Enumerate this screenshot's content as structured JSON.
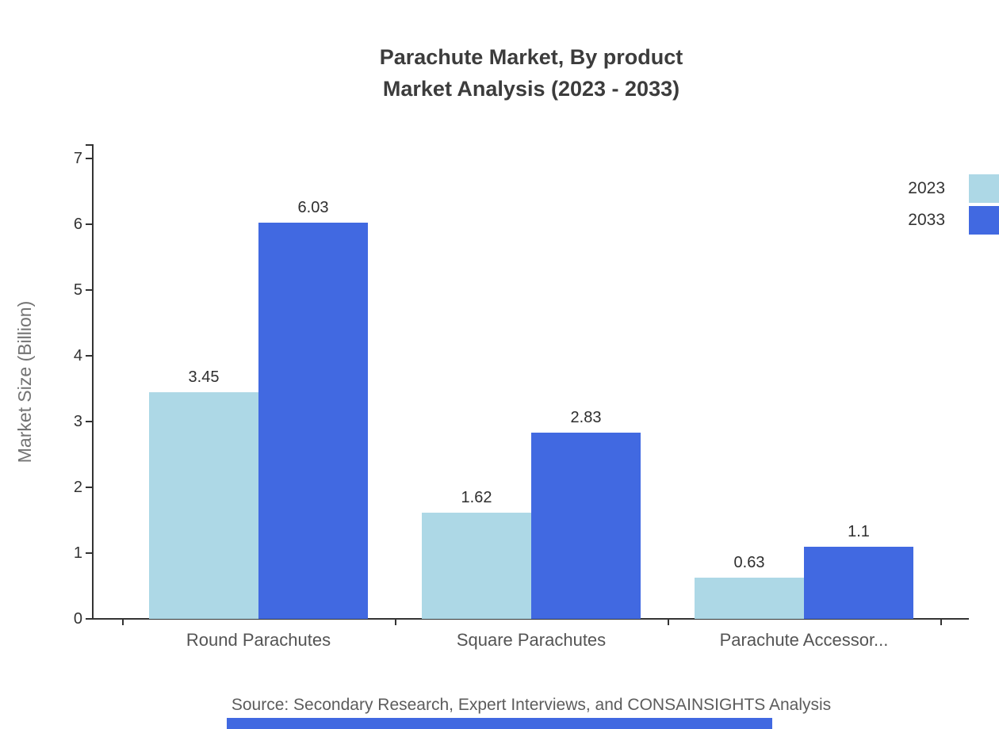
{
  "chart": {
    "title_line1": "Parachute Market, By product",
    "title_line2": "Market Analysis (2023 - 2033)",
    "ylabel": "Market Size (Billion)",
    "source": "Source: Secondary Research, Expert Interviews, and CONSAINSIGHTS Analysis"
  },
  "colors": {
    "series_2023": "#ADD8E6",
    "series_2033": "#4169E1",
    "axis": "#333333",
    "footer_bar": "#4169E1"
  },
  "chart_data": {
    "type": "bar",
    "title": "Parachute Market, By product Market Analysis (2023 - 2033)",
    "categories": [
      "Round Parachutes",
      "Square Parachutes",
      "Parachute Accessor..."
    ],
    "series": [
      {
        "name": "2023",
        "color": "#ADD8E6",
        "values": [
          3.45,
          1.62,
          0.63
        ]
      },
      {
        "name": "2033",
        "color": "#4169E1",
        "values": [
          6.03,
          2.83,
          1.1
        ]
      }
    ],
    "value_labels": [
      [
        "3.45",
        "1.62",
        "0.63"
      ],
      [
        "6.03",
        "2.83",
        "1.1"
      ]
    ],
    "xlabel": "",
    "ylabel": "Market Size (Billion)",
    "ylim": [
      0,
      7
    ],
    "yticks": [
      0,
      1,
      2,
      3,
      4,
      5,
      6,
      7
    ],
    "grid": false,
    "legend_position": "top-right"
  }
}
